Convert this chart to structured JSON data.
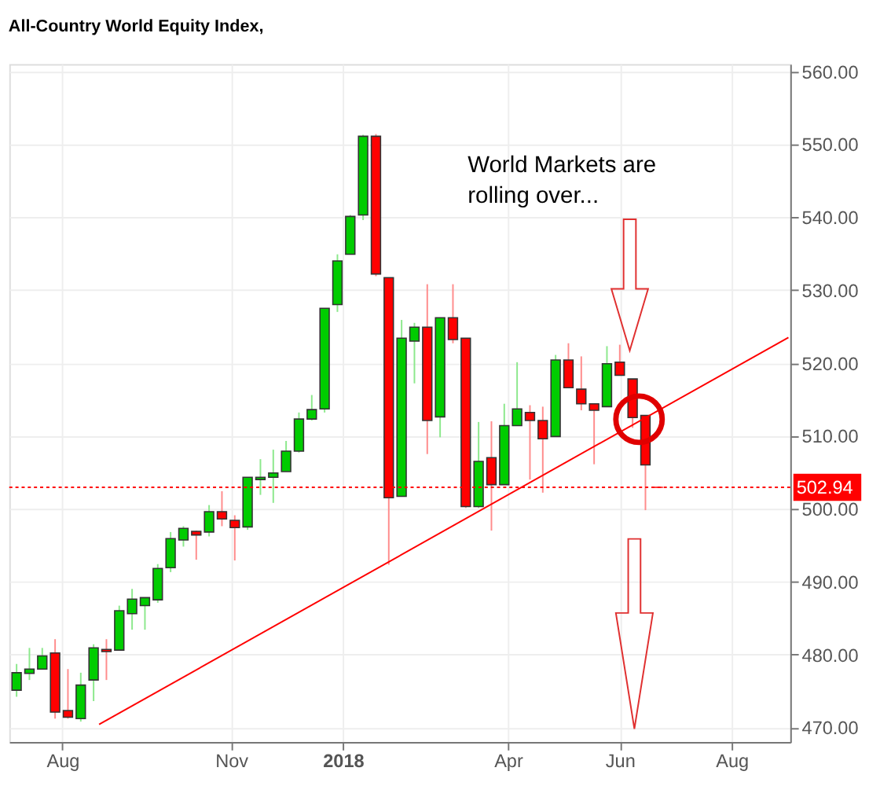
{
  "chart_data": {
    "type": "candlestick",
    "title": "All-Country World Equity Index,",
    "x": [
      "2017-07-07",
      "2017-07-14",
      "2017-07-21",
      "2017-07-28",
      "2017-08-04",
      "2017-08-11",
      "2017-08-18",
      "2017-08-25",
      "2017-09-01",
      "2017-09-08",
      "2017-09-15",
      "2017-09-22",
      "2017-09-29",
      "2017-10-06",
      "2017-10-13",
      "2017-10-20",
      "2017-10-27",
      "2017-11-03",
      "2017-11-10",
      "2017-11-17",
      "2017-11-24",
      "2017-12-01",
      "2017-12-08",
      "2017-12-15",
      "2017-12-22",
      "2017-12-29",
      "2018-01-05",
      "2018-01-12",
      "2018-01-19",
      "2018-01-26",
      "2018-02-02",
      "2018-02-09",
      "2018-02-16",
      "2018-02-23",
      "2018-03-02",
      "2018-03-09",
      "2018-03-16",
      "2018-03-23",
      "2018-03-30",
      "2018-04-06",
      "2018-04-13",
      "2018-04-20",
      "2018-04-27",
      "2018-05-04",
      "2018-05-11",
      "2018-05-18",
      "2018-05-25",
      "2018-06-01",
      "2018-06-08",
      "2018-06-15",
      "2018-06-22"
    ],
    "ohlc": [
      [
        475.1,
        478.7,
        474.2,
        477.5
      ],
      [
        477.4,
        480.9,
        476.5,
        478.0
      ],
      [
        478.0,
        480.9,
        478.0,
        479.8
      ],
      [
        480.2,
        482.1,
        471.2,
        472.1
      ],
      [
        472.3,
        478.0,
        471.2,
        471.4
      ],
      [
        471.2,
        477.5,
        470.8,
        475.8
      ],
      [
        476.5,
        481.4,
        473.6,
        480.9
      ],
      [
        480.7,
        482.1,
        476.5,
        480.4
      ],
      [
        480.6,
        486.7,
        480.6,
        486.0
      ],
      [
        485.6,
        489.0,
        483.4,
        487.6
      ],
      [
        486.7,
        487.8,
        483.4,
        487.8
      ],
      [
        487.5,
        492.4,
        487.1,
        491.8
      ],
      [
        491.9,
        496.8,
        491.3,
        495.9
      ],
      [
        495.7,
        497.6,
        494.8,
        497.3
      ],
      [
        496.9,
        497.0,
        493.0,
        496.4
      ],
      [
        496.8,
        500.5,
        496.2,
        499.6
      ],
      [
        499.6,
        502.4,
        497.6,
        498.6
      ],
      [
        498.4,
        499.1,
        492.9,
        497.4
      ],
      [
        497.5,
        504.3,
        497.1,
        504.3
      ],
      [
        504.0,
        506.8,
        501.9,
        504.3
      ],
      [
        504.3,
        508.1,
        500.8,
        504.9
      ],
      [
        505.1,
        509.3,
        505.1,
        507.9
      ],
      [
        507.9,
        513.2,
        507.7,
        512.3
      ],
      [
        512.3,
        515.6,
        512.1,
        513.6
      ],
      [
        513.7,
        527.5,
        513.2,
        527.5
      ],
      [
        528.0,
        534.9,
        527.0,
        534.0
      ],
      [
        534.9,
        540.3,
        534.9,
        540.1
      ],
      [
        540.3,
        551.3,
        539.6,
        551.1
      ],
      [
        551.1,
        551.4,
        531.9,
        532.2
      ],
      [
        531.7,
        531.7,
        492.3,
        501.5
      ],
      [
        501.7,
        525.9,
        501.7,
        523.4
      ],
      [
        523.0,
        525.5,
        517.2,
        524.9
      ],
      [
        524.9,
        530.8,
        507.5,
        512.1
      ],
      [
        512.6,
        526.2,
        509.8,
        526.2
      ],
      [
        526.2,
        530.8,
        522.7,
        523.2
      ],
      [
        523.4,
        523.4,
        500.1,
        500.3
      ],
      [
        500.3,
        511.9,
        500.1,
        506.5
      ],
      [
        507.0,
        512.0,
        497.0,
        503.3
      ],
      [
        503.3,
        514.4,
        503.3,
        511.4
      ],
      [
        511.4,
        520.1,
        511.4,
        513.7
      ],
      [
        513.2,
        514.2,
        504.0,
        512.1
      ],
      [
        512.1,
        514.0,
        502.2,
        509.6
      ],
      [
        509.9,
        521.1,
        509.9,
        520.4
      ],
      [
        520.4,
        522.7,
        516.6,
        516.6
      ],
      [
        516.4,
        520.9,
        513.5,
        514.4
      ],
      [
        514.4,
        514.4,
        506.1,
        513.5
      ],
      [
        514.0,
        522.3,
        514.0,
        519.9
      ],
      [
        520.1,
        522.5,
        518.3,
        518.3
      ],
      [
        517.8,
        517.8,
        511.1,
        512.5
      ],
      [
        512.8,
        512.8,
        499.8,
        506.0
      ],
      [
        502.94,
        502.94,
        502.94,
        502.94
      ]
    ],
    "colors": [
      "#00cc00",
      "#00cc00",
      "#00cc00",
      "#ff0000",
      "#ff0000",
      "#00cc00",
      "#00cc00",
      "#ff0000",
      "#00cc00",
      "#00cc00",
      "#00cc00",
      "#00cc00",
      "#00cc00",
      "#00cc00",
      "#ff0000",
      "#00cc00",
      "#ff0000",
      "#ff0000",
      "#00cc00",
      "#00cc00",
      "#00cc00",
      "#00cc00",
      "#00cc00",
      "#00cc00",
      "#00cc00",
      "#00cc00",
      "#00cc00",
      "#00cc00",
      "#ff0000",
      "#ff0000",
      "#00cc00",
      "#00cc00",
      "#ff0000",
      "#00cc00",
      "#ff0000",
      "#ff0000",
      "#00cc00",
      "#ff0000",
      "#00cc00",
      "#00cc00",
      "#ff0000",
      "#ff0000",
      "#00cc00",
      "#ff0000",
      "#ff0000",
      "#ff0000",
      "#00cc00",
      "#ff0000",
      "#ff0000",
      "#ff0000",
      "#ff0000"
    ],
    "series": [
      {
        "type": "line",
        "color": "#ff0000",
        "x": [
          "2017-08-21",
          "2018-09-01"
        ],
        "values": [
          470.4,
          523.5
        ]
      }
    ],
    "xlim": [
      "2017-07-03",
      "2018-09-02"
    ],
    "xticks": [
      {
        "value": "2017-08-01",
        "label": "Aug"
      },
      {
        "value": "2017-11-01",
        "label": "Nov"
      },
      {
        "value": "2018-01-01",
        "label": "2018"
      },
      {
        "value": "2018-04-01",
        "label": "Apr"
      },
      {
        "value": "2018-06-01",
        "label": "Jun"
      },
      {
        "value": "2018-08-01",
        "label": "Aug"
      }
    ],
    "ylim": [
      468,
      561
    ],
    "yticks": [
      {
        "value": 470,
        "label": "470.00"
      },
      {
        "value": 480,
        "label": "480.00"
      },
      {
        "value": 490,
        "label": "490.00"
      },
      {
        "value": 500,
        "label": "500.00"
      },
      {
        "value": 510,
        "label": "510.00"
      },
      {
        "value": 520,
        "label": "520.00"
      },
      {
        "value": 530,
        "label": "530.00"
      },
      {
        "value": 540,
        "label": "540.00"
      },
      {
        "value": 550,
        "label": "550.00"
      },
      {
        "value": 560,
        "label": "560.00"
      }
    ],
    "ref_lines": [
      {
        "axis": "y",
        "value": 502.94,
        "label": "502.94",
        "color": "#ff0000",
        "line_style": "dotted"
      }
    ],
    "annotations": [
      "World Markets are rolling over..."
    ],
    "grid": true
  }
}
